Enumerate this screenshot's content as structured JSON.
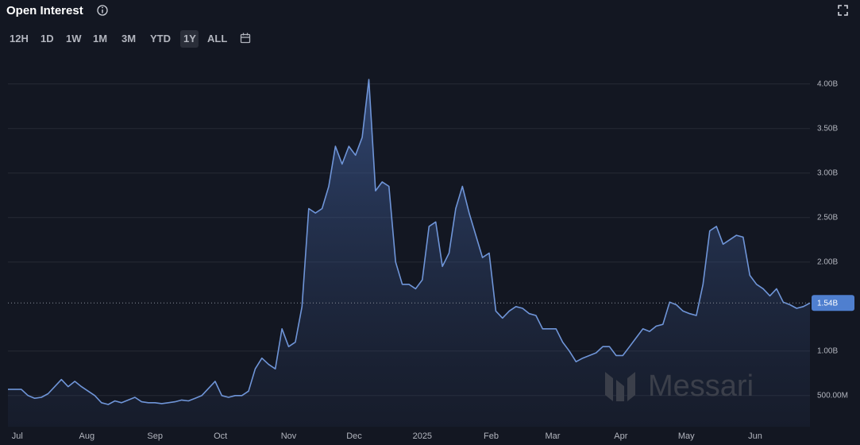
{
  "chart_data": {
    "type": "area",
    "title": "Open Interest",
    "ranges": [
      "12H",
      "1D",
      "1W",
      "1M",
      "3M",
      "YTD",
      "1Y",
      "ALL"
    ],
    "active_range": "1Y",
    "watermark": "Messari",
    "color": "#6f95d8",
    "grid": true,
    "xlim": [
      0,
      120
    ],
    "xticks": [
      {
        "value": 1.4,
        "label": "Jul"
      },
      {
        "value": 11.8,
        "label": "Aug"
      },
      {
        "value": 22,
        "label": "Sep"
      },
      {
        "value": 31.8,
        "label": "Oct"
      },
      {
        "value": 42,
        "label": "Nov"
      },
      {
        "value": 51.8,
        "label": "Dec"
      },
      {
        "value": 62,
        "label": "2025"
      },
      {
        "value": 72.3,
        "label": "Feb"
      },
      {
        "value": 81.5,
        "label": "Mar"
      },
      {
        "value": 91.7,
        "label": "Apr"
      },
      {
        "value": 101.5,
        "label": "May"
      },
      {
        "value": 111.8,
        "label": "Jun"
      }
    ],
    "ylim": [
      150000000,
      4140000000
    ],
    "yticks": [
      {
        "value": 500000000,
        "label": "500.00M"
      },
      {
        "value": 1000000000,
        "label": "1.00B"
      },
      {
        "value": 2000000000,
        "label": "2.00B"
      },
      {
        "value": 2500000000,
        "label": "2.50B"
      },
      {
        "value": 3000000000,
        "label": "3.00B"
      },
      {
        "value": 3500000000,
        "label": "3.50B"
      },
      {
        "value": 4000000000,
        "label": "4.00B"
      }
    ],
    "current_value": 1540000000,
    "current_value_label": "1.54B",
    "values": [
      570000000,
      570000000,
      570000000,
      500000000,
      470000000,
      480000000,
      520000000,
      600000000,
      680000000,
      600000000,
      660000000,
      600000000,
      550000000,
      500000000,
      420000000,
      400000000,
      440000000,
      420000000,
      450000000,
      480000000,
      430000000,
      420000000,
      420000000,
      410000000,
      420000000,
      430000000,
      450000000,
      440000000,
      470000000,
      500000000,
      580000000,
      660000000,
      500000000,
      480000000,
      500000000,
      500000000,
      550000000,
      800000000,
      920000000,
      850000000,
      800000000,
      1250000000,
      1050000000,
      1100000000,
      1500000000,
      2600000000,
      2550000000,
      2600000000,
      2850000000,
      3300000000,
      3100000000,
      3300000000,
      3200000000,
      3400000000,
      4050000000,
      2800000000,
      2900000000,
      2850000000,
      2000000000,
      1750000000,
      1750000000,
      1700000000,
      1800000000,
      2400000000,
      2450000000,
      1950000000,
      2100000000,
      2600000000,
      2850000000,
      2550000000,
      2300000000,
      2050000000,
      2100000000,
      1450000000,
      1370000000,
      1450000000,
      1500000000,
      1480000000,
      1420000000,
      1400000000,
      1250000000,
      1250000000,
      1250000000,
      1100000000,
      1000000000,
      880000000,
      920000000,
      950000000,
      980000000,
      1050000000,
      1050000000,
      950000000,
      950000000,
      1050000000,
      1150000000,
      1250000000,
      1220000000,
      1280000000,
      1300000000,
      1550000000,
      1520000000,
      1450000000,
      1420000000,
      1400000000,
      1750000000,
      2350000000,
      2400000000,
      2200000000,
      2250000000,
      2300000000,
      2280000000,
      1850000000,
      1750000000,
      1700000000,
      1620000000,
      1700000000,
      1550000000,
      1520000000,
      1480000000,
      1500000000,
      1540000000
    ]
  }
}
